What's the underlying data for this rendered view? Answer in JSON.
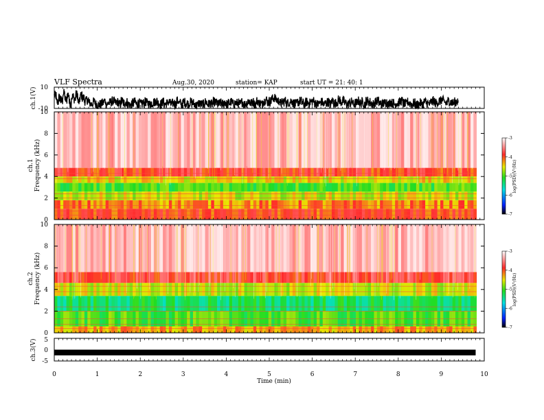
{
  "header": {
    "title": "VLF Spectra",
    "date": "Aug.30, 2020",
    "station": "station= KAP",
    "start": "start UT =  21: 40: 1"
  },
  "colors": {
    "red": "#ff2a2a",
    "orange": "#ff8c00",
    "yellow": "#e8e800",
    "green": "#22dd22",
    "cyan": "#00e0e0",
    "blue": "#0030ff",
    "black": "#000000"
  },
  "chart_data": [
    {
      "type": "line",
      "ylabel": "ch.1(V)",
      "ylim": [
        -10,
        10
      ],
      "yticks": [
        "10",
        "-10"
      ],
      "xlim": [
        0,
        10
      ],
      "x_step_min": 0.05,
      "values": [
        2,
        -4,
        0,
        -3,
        4,
        -2,
        3,
        -5,
        1,
        -1,
        3,
        -4,
        2,
        0,
        -3,
        -2,
        -5,
        -6,
        -4,
        -6,
        -7,
        -6,
        -5,
        -3,
        -6,
        -5,
        -4,
        -3,
        -5,
        -4,
        -6,
        -3,
        -5,
        -4,
        -6,
        -7,
        -5,
        -4,
        -6,
        -5,
        -6,
        -5,
        -4,
        -5,
        -6,
        -5,
        -4,
        -3,
        -5,
        -6,
        -4,
        -6,
        -5,
        -4,
        -6,
        -5,
        -6,
        -3,
        -5,
        -6,
        -4,
        -5,
        -6,
        -4,
        -5,
        -6,
        -7,
        -5,
        -6,
        -6,
        -4,
        -6,
        -5,
        -6,
        -4,
        -5,
        -6,
        -5,
        -6,
        -4,
        -6,
        -5,
        -4,
        -6,
        -5,
        -5,
        -6,
        -4,
        -6,
        -5,
        -3,
        -5,
        -4,
        -6,
        -3,
        -5,
        -6,
        -3,
        -2,
        -4,
        -3,
        -1,
        0,
        -2,
        -3,
        -5,
        -4,
        -3,
        -5,
        -4,
        -3,
        -5,
        -6,
        -4,
        -3,
        -5,
        -6,
        -4,
        -5,
        -4,
        -3,
        -5,
        -6,
        -5,
        -4,
        -6,
        -5,
        -4,
        -6,
        -3,
        -5,
        -4,
        -2,
        -4,
        -3,
        -5,
        -6,
        -5,
        -4,
        -6,
        -5,
        -3,
        -5,
        -4,
        -6,
        -3,
        -4,
        -5,
        -6,
        -4,
        -3,
        -5,
        -6,
        -5,
        -4,
        -6,
        -4,
        -5,
        -6,
        -5,
        -4,
        -3,
        -5,
        -6,
        -4,
        -5,
        -6,
        -5,
        -7,
        -6,
        -5,
        -6,
        -4,
        -5,
        -6,
        -4,
        -3,
        -5,
        -4,
        -3,
        -2,
        -4,
        -5,
        -3,
        -4,
        -5,
        -4,
        -3
      ]
    },
    {
      "type": "heatmap",
      "name": "ch.1",
      "ylabel": "Frequency (kHz)",
      "ylim": [
        0,
        10
      ],
      "yticks": [
        "0",
        "2",
        "4",
        "6",
        "8",
        "10"
      ],
      "xlim": [
        0,
        10
      ],
      "colorbar": {
        "label": "log(PSD)(V²/Hz)",
        "range": [
          -7,
          -3
        ],
        "ticks": [
          "-3",
          "-4",
          "-5",
          "-6",
          "-7"
        ]
      },
      "bands": [
        {
          "f": [
            4.8,
            10.0
          ],
          "level": -3.2
        },
        {
          "f": [
            4.0,
            4.8
          ],
          "level": -3.9
        },
        {
          "f": [
            3.4,
            4.0
          ],
          "level": -4.5
        },
        {
          "f": [
            2.6,
            3.4
          ],
          "level": -5.0
        },
        {
          "f": [
            1.8,
            2.6
          ],
          "level": -4.6
        },
        {
          "f": [
            1.0,
            1.8
          ],
          "level": -4.2
        },
        {
          "f": [
            0.0,
            1.0
          ],
          "level": -4.0
        }
      ]
    },
    {
      "type": "heatmap",
      "name": "ch.2",
      "ylabel": "Frequency (kHz)",
      "ylim": [
        0,
        10
      ],
      "yticks": [
        "0",
        "2",
        "4",
        "6",
        "8",
        "10"
      ],
      "xlim": [
        0,
        10
      ],
      "colorbar": {
        "label": "log(PSD)(V²/Hz)",
        "range": [
          -7,
          -3
        ],
        "ticks": [
          "-3",
          "-4",
          "-5",
          "-6",
          "-7"
        ]
      },
      "bands": [
        {
          "f": [
            5.6,
            10.0
          ],
          "level": -3.2
        },
        {
          "f": [
            4.6,
            5.6
          ],
          "level": -3.8
        },
        {
          "f": [
            3.4,
            4.6
          ],
          "level": -4.6
        },
        {
          "f": [
            2.0,
            3.4
          ],
          "level": -5.3
        },
        {
          "f": [
            0.6,
            2.0
          ],
          "level": -5.0
        },
        {
          "f": [
            0.0,
            0.6
          ],
          "level": -4.3
        }
      ]
    },
    {
      "type": "line",
      "ylabel": "ch.3(V)",
      "ylim": [
        -5,
        5
      ],
      "yticks": [
        "5",
        "0",
        "-5"
      ],
      "xlim": [
        0,
        10
      ],
      "xlabel": "Time (min)",
      "xticks": [
        "0",
        "1",
        "2",
        "3",
        "4",
        "5",
        "6",
        "7",
        "8",
        "9",
        "10"
      ],
      "band": [
        -1,
        0
      ],
      "end_min": 9.8
    }
  ]
}
